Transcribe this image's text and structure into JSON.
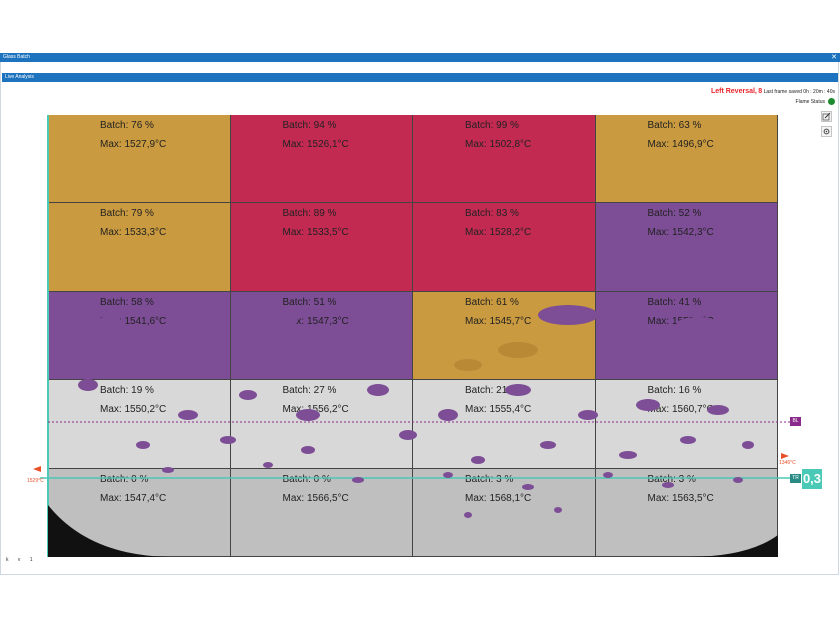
{
  "window": {
    "title": "Glass Batch",
    "close_glyph": "✕"
  },
  "panel": {
    "title": "Live Analysis"
  },
  "status": {
    "reversal": "Left Reversal,",
    "reversal_count": "8",
    "last_frame": "Last frame saved 0h : 20m : 40s",
    "flame_status": "Flame Status",
    "flame_color": "#1e8c2e"
  },
  "tools": [
    {
      "icon": "edit-icon"
    },
    {
      "icon": "settings-icon"
    }
  ],
  "grid": {
    "rows": [
      [
        {
          "batch": "Batch: 76 %",
          "max": "Max: 1527,9°C",
          "zone": "yellow"
        },
        {
          "batch": "Batch: 94 %",
          "max": "Max: 1526,1°C",
          "zone": "red"
        },
        {
          "batch": "Batch: 99 %",
          "max": "Max: 1502,8°C",
          "zone": "red"
        },
        {
          "batch": "Batch: 63 %",
          "max": "Max: 1496,9°C",
          "zone": "yellow"
        }
      ],
      [
        {
          "batch": "Batch: 79 %",
          "max": "Max: 1533,3°C",
          "zone": "yellow"
        },
        {
          "batch": "Batch: 89 %",
          "max": "Max: 1533,5°C",
          "zone": "red"
        },
        {
          "batch": "Batch: 83 %",
          "max": "Max: 1528,2°C",
          "zone": "red"
        },
        {
          "batch": "Batch: 52 %",
          "max": "Max: 1542,3°C",
          "zone": "purple"
        }
      ],
      [
        {
          "batch": "Batch: 58 %",
          "max": "Max: 1541,6°C",
          "zone": "purple"
        },
        {
          "batch": "Batch: 51 %",
          "max": "Max: 1547,3°C",
          "zone": "purple"
        },
        {
          "batch": "Batch: 61 %",
          "max": "Max: 1545,7°C",
          "zone": "yellow"
        },
        {
          "batch": "Batch: 41 %",
          "max": "Max: 1555,1°C",
          "zone": "purple"
        }
      ],
      [
        {
          "batch": "Batch: 19 %",
          "max": "Max: 1550,2°C",
          "zone": "light"
        },
        {
          "batch": "Batch: 27 %",
          "max": "Max: 1556,2°C",
          "zone": "light"
        },
        {
          "batch": "Batch: 21 %",
          "max": "Max: 1555,4°C",
          "zone": "light"
        },
        {
          "batch": "Batch: 16 %",
          "max": "Max: 1560,7°C",
          "zone": "light"
        }
      ],
      [
        {
          "batch": "Batch: 0 %",
          "max": "Max: 1547,4°C",
          "zone": "dark"
        },
        {
          "batch": "Batch: 0 %",
          "max": "Max: 1566,5°C",
          "zone": "dark"
        },
        {
          "batch": "Batch: 3 %",
          "max": "Max: 1568,1°C",
          "zone": "dark"
        },
        {
          "batch": "Batch: 3 %",
          "max": "Max: 1563,5°C",
          "zone": "dark"
        }
      ]
    ],
    "zone_colors": {
      "yellow": "#c99a3f",
      "red": "#c22a52",
      "purple": "#7d4d96",
      "light": "#d8d8d8",
      "dark": "#bfbfbf"
    }
  },
  "markers": {
    "left_temp": "1529°C",
    "right_temp": "1346°C",
    "bl_tag": "BL",
    "tr_tag": "TR",
    "value": "0,3"
  },
  "bottom_icons": "k v 1"
}
